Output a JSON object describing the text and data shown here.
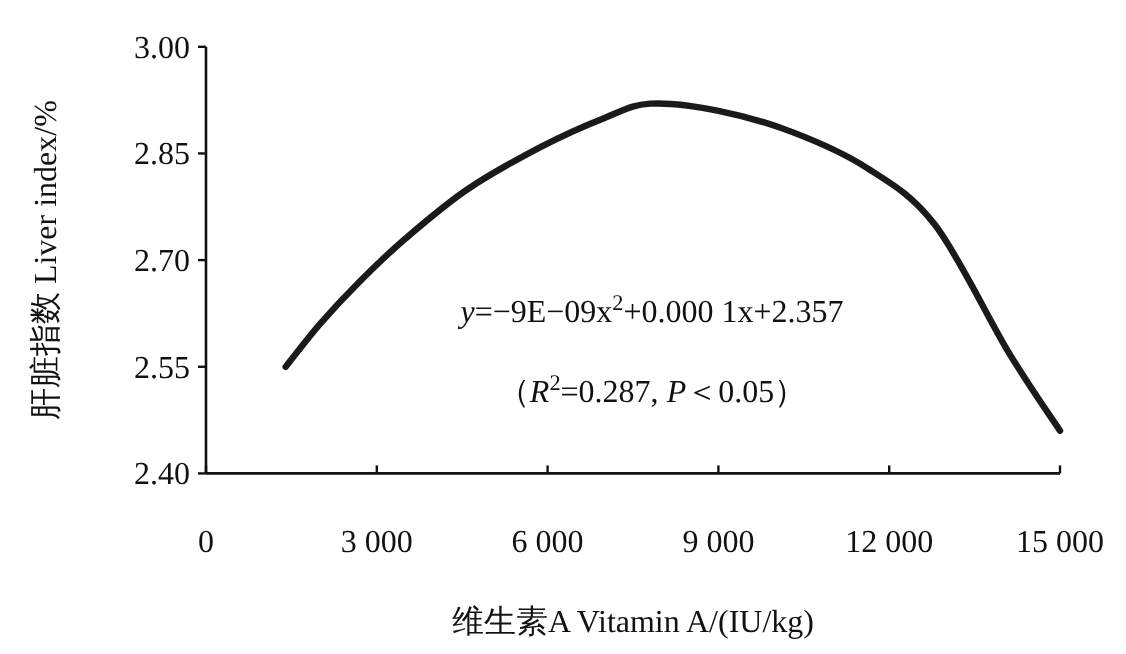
{
  "chart_data": {
    "type": "line",
    "xlabel": "维生素A Vitamin A/(IU/kg)",
    "ylabel": "肝脏指数  Liver index/%",
    "xlim": [
      0,
      15000
    ],
    "xticks": [
      0,
      {
        "value": 3000,
        "label": "3 000"
      },
      {
        "value": 6000,
        "label": "6 000"
      },
      {
        "value": 9000,
        "label": "9 000"
      },
      {
        "value": 12000,
        "label": "12 000"
      },
      {
        "value": 15000,
        "label": "15 000"
      }
    ],
    "ylim": [
      2.4,
      3.0
    ],
    "yticks": [
      {
        "value": 2.4,
        "label": "2.40"
      },
      {
        "value": 2.55,
        "label": "2.55"
      },
      {
        "value": 2.7,
        "label": "2.70"
      },
      {
        "value": 2.85,
        "label": "2.85"
      },
      {
        "value": 3.0,
        "label": "3.00"
      }
    ],
    "series": [
      {
        "color": "#1a1a1a",
        "x": [
          1400,
          2000,
          2700,
          3500,
          4600,
          5900,
          7000,
          7800,
          9000,
          10300,
          11600,
          12800,
          14100,
          15000
        ],
        "values": [
          2.55,
          2.61,
          2.67,
          2.73,
          2.8,
          2.86,
          2.9,
          2.92,
          2.91,
          2.88,
          2.83,
          2.75,
          2.57,
          2.46
        ]
      }
    ],
    "annotations": [
      "*y*=−9E−09x$^{2}$+0.000 1x+2.357",
      "（*R*$^{2}$=0.287, *P*＜0.05）"
    ],
    "grid": false,
    "marker": "none",
    "line_style": "solid"
  }
}
